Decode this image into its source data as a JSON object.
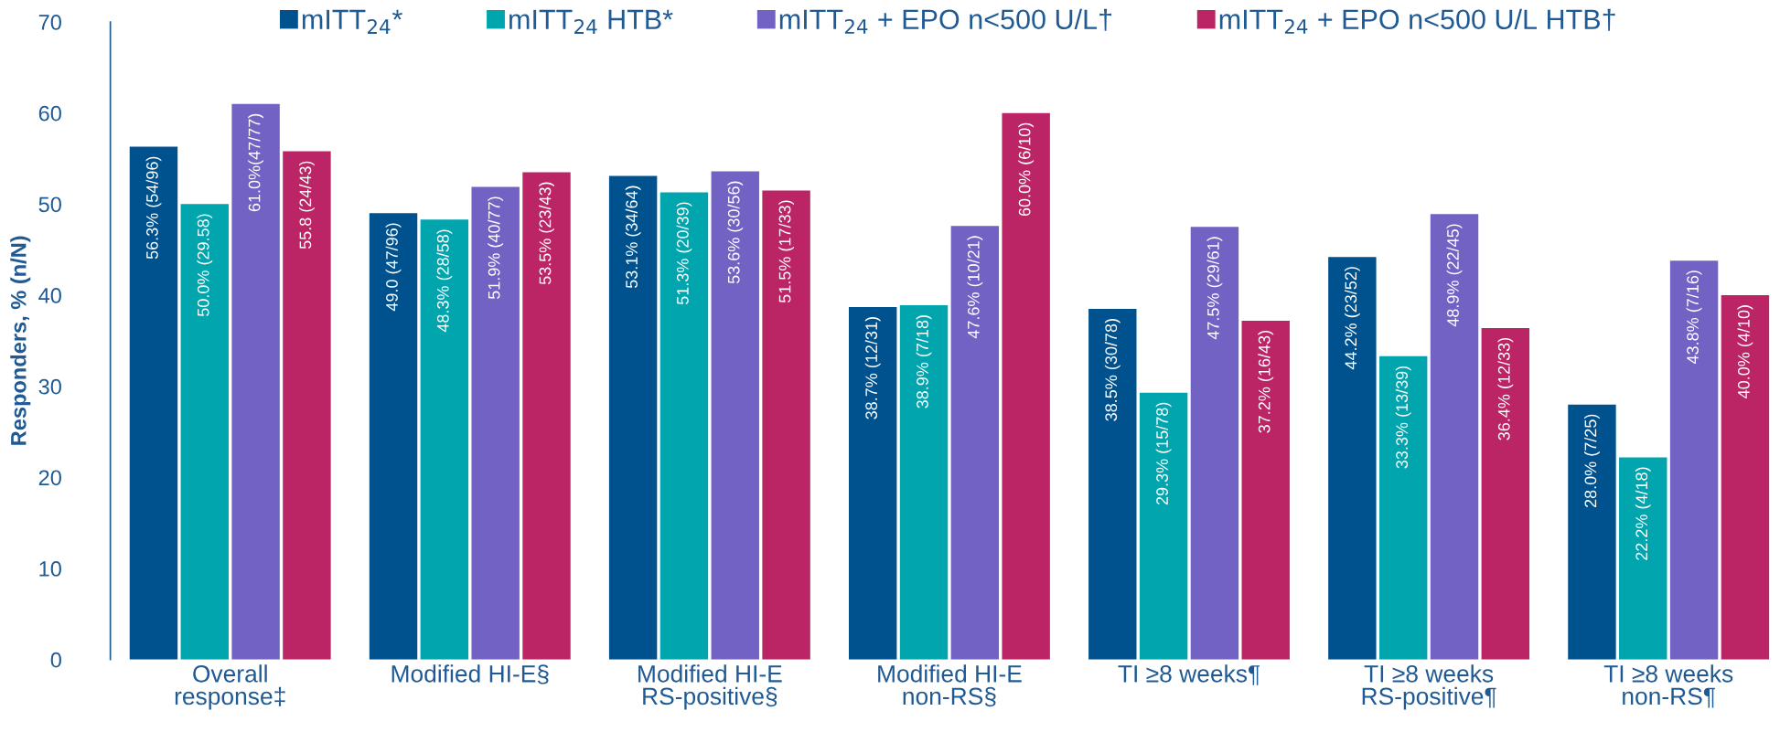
{
  "chart_data": {
    "type": "bar",
    "ylabel": "Responders, % (n/N)",
    "categories": [
      "Overall\nresponse‡",
      "Modified HI-E§",
      "Modified HI-E\nRS-positive§",
      "Modified HI-E\nnon-RS§",
      "TI ≥8 weeks¶",
      "TI ≥8 weeks\nRS-positive¶",
      "TI ≥8 weeks\nnon-RS¶"
    ],
    "series": [
      {
        "name": "mITT$_{24}$*",
        "color": "#00528f",
        "values": [
          56.3,
          49.0,
          53.1,
          38.7,
          38.5,
          44.2,
          28.0
        ],
        "value_labels": [
          "56.3% (54/96)",
          "49.0 (47/96)",
          "53.1% (34/64)",
          "38.7% (12/31)",
          "38.5% (30/78)",
          "44.2% (23/52)",
          "28.0% (7/25)"
        ]
      },
      {
        "name": "mITT$_{24}$ HTB*",
        "color": "#00a5ae",
        "values": [
          50.0,
          48.3,
          51.3,
          38.9,
          29.3,
          33.3,
          22.2
        ],
        "value_labels": [
          "50.0% (29.58)",
          "48.3% (28/58)",
          "51.3% (20/39)",
          "38.9% (7/18)",
          "29.3% (15/78)",
          "33.3% (13/39)",
          "22.2% (4/18)"
        ]
      },
      {
        "name": "mITT$_{24}$ + EPO n<500 U/L†",
        "color": "#7262c4",
        "values": [
          61.0,
          51.9,
          53.6,
          47.6,
          47.5,
          48.9,
          43.8
        ],
        "value_labels": [
          "61.0%(47/77)",
          "51.9% (40/77)",
          "53.6% (30/56)",
          "47.6% (10/21)",
          "47.5% (29/61)",
          "48.9% (22/45)",
          "43.8% (7/16)"
        ]
      },
      {
        "name": "mITT$_{24}$ + EPO n<500 U/L HTB†",
        "color": "#bb2566",
        "values": [
          55.8,
          53.5,
          51.5,
          60.0,
          37.2,
          36.4,
          40.0
        ],
        "value_labels": [
          "55.8 (24/43)",
          "53.5% (23/43)",
          "51.5% (17/33)",
          "60.0% (6/10)",
          "37.2% (16/43)",
          "36.4% (12/33)",
          "40.0% (4/10)"
        ]
      }
    ],
    "ylim": [
      0,
      70
    ],
    "yticks": [
      0,
      10,
      20,
      30,
      40,
      50,
      60,
      70
    ],
    "legend": "top"
  }
}
